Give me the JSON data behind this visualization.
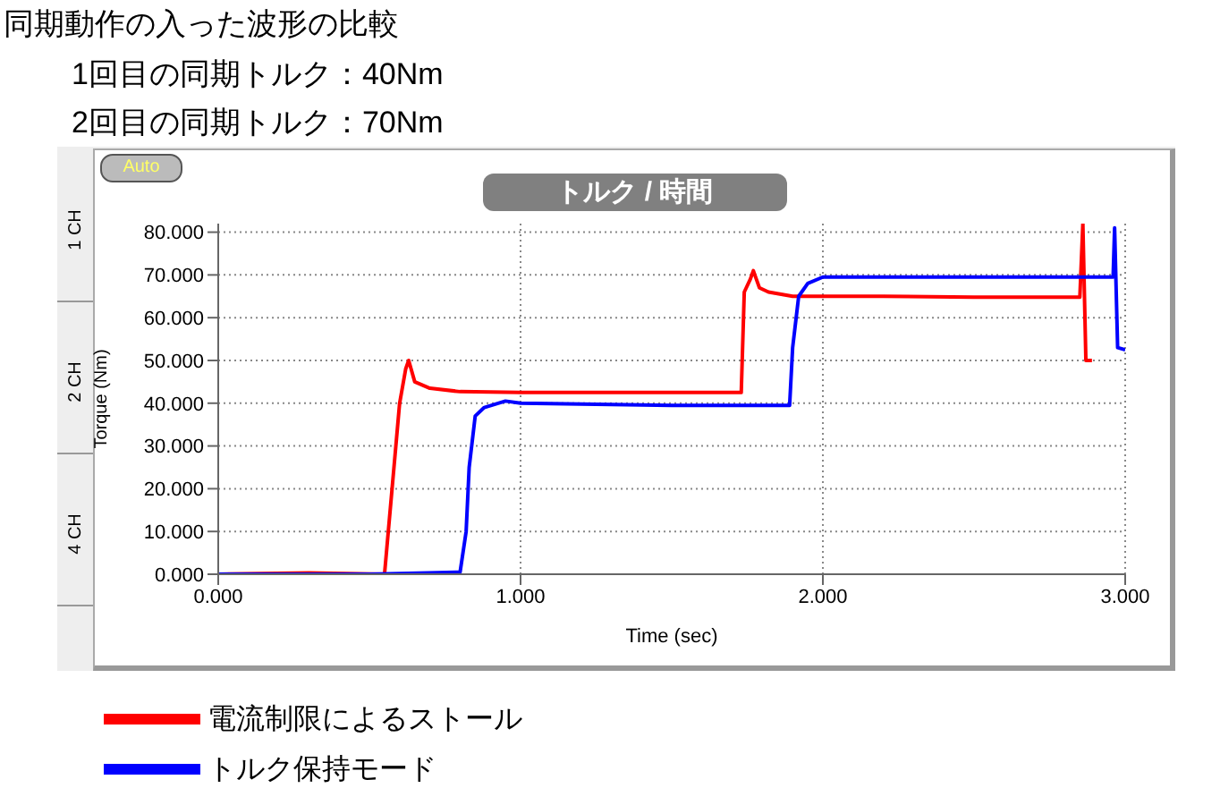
{
  "chart_data": {
    "type": "line",
    "title": "トルク / 時間",
    "xlabel": "Time (sec)",
    "ylabel": "Torque (Nm)",
    "annotations": [
      "同期動作の入った波形の比較",
      "1回目の同期トルク：40Nm",
      "2回目の同期トルク：70Nm",
      "Auto",
      "1 CH",
      "2 CH",
      "4 CH"
    ],
    "xlim": [
      0,
      3
    ],
    "xticks": [
      {
        "value": 0,
        "label": "0.000"
      },
      {
        "value": 1,
        "label": "1.000"
      },
      {
        "value": 2,
        "label": "2.000"
      },
      {
        "value": 3,
        "label": "3.000"
      }
    ],
    "ylim": [
      0,
      82
    ],
    "yticks": [
      {
        "value": 0,
        "label": "0.000"
      },
      {
        "value": 10,
        "label": "10.000"
      },
      {
        "value": 20,
        "label": "20.000"
      },
      {
        "value": 30,
        "label": "30.000"
      },
      {
        "value": 40,
        "label": "40.000"
      },
      {
        "value": 50,
        "label": "50.000"
      },
      {
        "value": 60,
        "label": "60.000"
      },
      {
        "value": 70,
        "label": "70.000"
      },
      {
        "value": 80,
        "label": "80.000"
      }
    ],
    "grid": true,
    "legend": "bottom",
    "marker": "none",
    "line_style": "solid",
    "series": [
      {
        "name": "電流制限によるストール",
        "color": "#ff0000",
        "x": [
          0,
          0.3,
          0.55,
          0.6,
          0.62,
          0.63,
          0.65,
          0.7,
          0.8,
          1.0,
          1.5,
          1.73,
          1.74,
          1.76,
          1.77,
          1.79,
          1.82,
          1.9,
          2.2,
          2.5,
          2.85,
          2.86,
          2.87,
          2.89
        ],
        "values": [
          0,
          0.3,
          0,
          40,
          48,
          50,
          45,
          43.5,
          42.7,
          42.5,
          42.5,
          42.5,
          66,
          69,
          71,
          67,
          66,
          65,
          65,
          64.8,
          64.8,
          82,
          50,
          50
        ]
      },
      {
        "name": "トルク保持モード",
        "color": "#0000ff",
        "x": [
          0,
          0.5,
          0.8,
          0.82,
          0.83,
          0.85,
          0.88,
          0.95,
          1.0,
          1.5,
          1.89,
          1.9,
          1.92,
          1.95,
          2.0,
          2.5,
          2.96,
          2.965,
          2.975,
          3.0
        ],
        "values": [
          0,
          0,
          0.5,
          10,
          25,
          37,
          39,
          40.5,
          40,
          39.5,
          39.5,
          53,
          65,
          68,
          69.5,
          69.5,
          69.5,
          81,
          53,
          52.5
        ]
      }
    ]
  }
}
